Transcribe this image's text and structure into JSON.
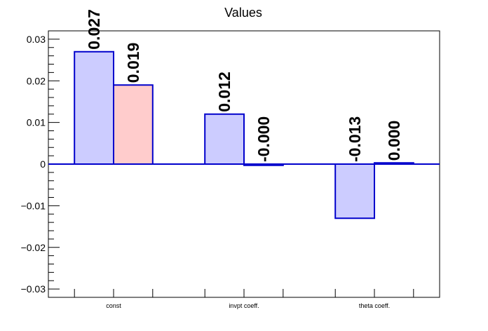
{
  "chart_data": {
    "type": "bar",
    "title": "Values",
    "xlabel": "",
    "ylabel": "",
    "categories": [
      "const",
      "invpt coeff.",
      "theta coeff."
    ],
    "series": [
      {
        "values": [
          0.027,
          0.012,
          -0.013
        ],
        "fill": "#ccccff",
        "stroke": "#0000cc"
      },
      {
        "values": [
          0.019,
          -0.0003,
          0.0003
        ],
        "fill": "#ffcccc",
        "stroke": "#0000cc"
      }
    ],
    "data_labels": [
      [
        "0.027",
        "0.012",
        "-0.013"
      ],
      [
        "0.019",
        "-0.000",
        "0.000"
      ]
    ],
    "ylim": [
      -0.032,
      0.032
    ],
    "yticks": [
      -0.03,
      -0.02,
      -0.01,
      0,
      0.01,
      0.02,
      0.03
    ],
    "ytick_labels": [
      "−0.03",
      "−0.02",
      "−0.01",
      "0",
      "0.01",
      "0.02",
      "0.03"
    ],
    "grid": false,
    "colors": {
      "axis": "#000000",
      "zero_line": "#0000cc"
    }
  }
}
